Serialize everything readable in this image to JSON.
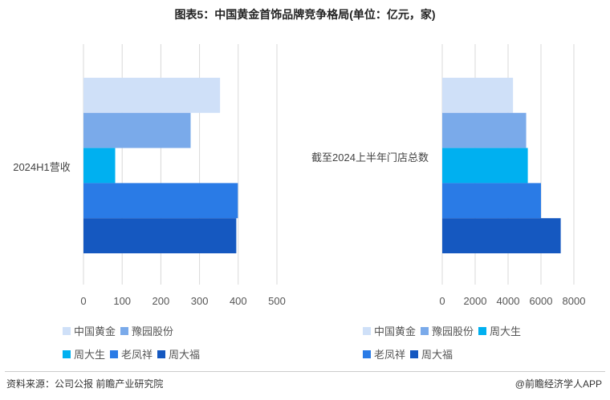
{
  "title": "图表5：中国黄金首饰品牌竞争格局(单位：亿元，家)",
  "source": "资料来源：公司公报 前瞻产业研究院",
  "brand": "@前瞻经济学人APP",
  "colors": {
    "中国黄金": "#cfe0f8",
    "豫园股份": "#7aaaea",
    "周大生": "#00b0f0",
    "老凤祥": "#2a7be6",
    "周大福": "#1558c0",
    "grid": "#d9d9d9"
  },
  "chart_data": [
    {
      "type": "bar",
      "orientation": "horizontal",
      "categories": [
        "2024H1营收"
      ],
      "series": [
        {
          "name": "中国黄金",
          "values": [
            353
          ]
        },
        {
          "name": "豫园股份",
          "values": [
            277
          ]
        },
        {
          "name": "周大生",
          "values": [
            82
          ]
        },
        {
          "name": "老凤祥",
          "values": [
            399
          ]
        },
        {
          "name": "周大福",
          "values": [
            395
          ]
        }
      ],
      "xlim": [
        0,
        500
      ],
      "xticks": [
        "0",
        "100",
        "200",
        "300",
        "400",
        "500"
      ],
      "grid": true,
      "legend": "bottom"
    },
    {
      "type": "bar",
      "orientation": "horizontal",
      "categories": [
        "截至2024上半年门店总数"
      ],
      "series": [
        {
          "name": "中国黄金",
          "values": [
            4300
          ]
        },
        {
          "name": "豫园股份",
          "values": [
            5100
          ]
        },
        {
          "name": "周大生",
          "values": [
            5200
          ]
        },
        {
          "name": "老凤祥",
          "values": [
            6000
          ]
        },
        {
          "name": "周大福",
          "values": [
            7200
          ]
        }
      ],
      "xlim": [
        0,
        8000
      ],
      "xticks": [
        "0",
        "2000",
        "4000",
        "6000",
        "8000"
      ],
      "grid": true,
      "legend": "bottom"
    }
  ]
}
